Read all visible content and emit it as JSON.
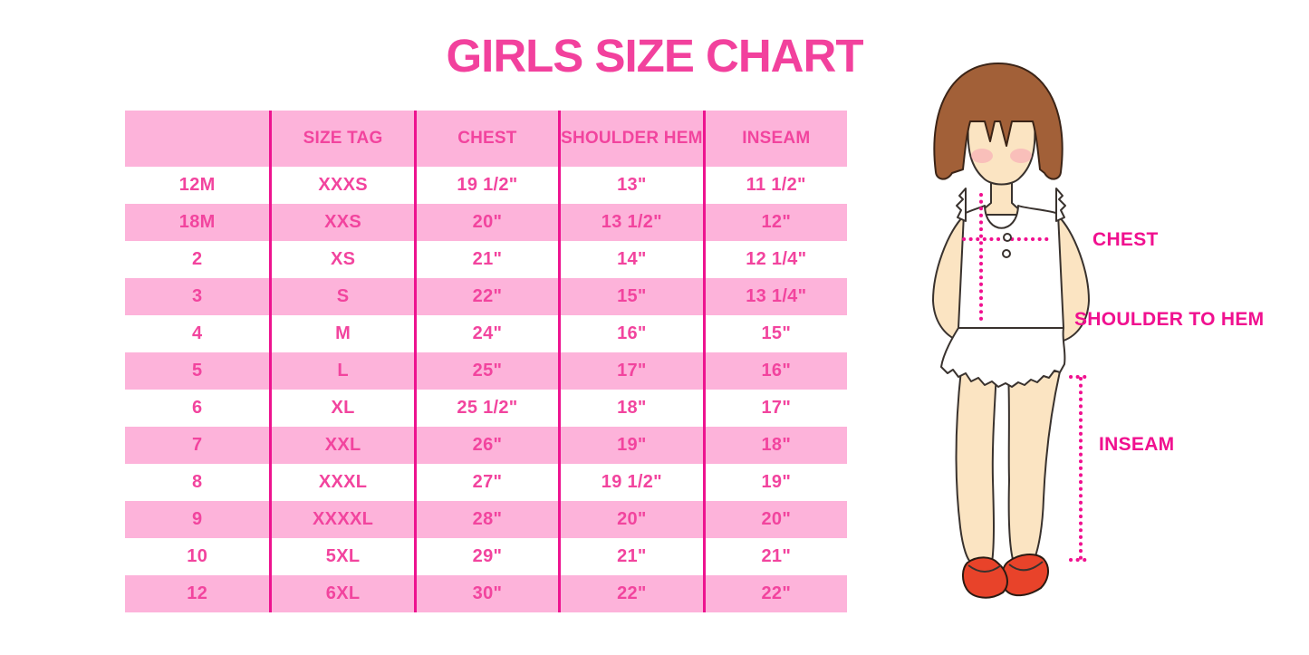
{
  "title": "GIRLS SIZE CHART",
  "colors": {
    "title_pink": "#F2419D",
    "row_pink": "#FDB3DA",
    "divider_magenta": "#ED138F",
    "cell_text_pink": "#F2449E",
    "label_magenta": "#F0108F",
    "hair_brown": "#A26038",
    "skin": "#FBE4C2",
    "shoe_red": "#E8432A"
  },
  "figure": {
    "chest_label": "CHEST",
    "shoulder_to_hem_label": "SHOULDER TO HEM",
    "inseam_label": "INSEAM"
  },
  "chart_data": {
    "type": "table",
    "title": "GIRLS SIZE CHART",
    "columns": [
      "",
      "SIZE TAG",
      "CHEST",
      "SHOULDER HEM",
      "INSEAM"
    ],
    "rows": [
      [
        "12M",
        "XXXS",
        "19 1/2\"",
        "13\"",
        "11 1/2\""
      ],
      [
        "18M",
        "XXS",
        "20\"",
        "13 1/2\"",
        "12\""
      ],
      [
        "2",
        "XS",
        "21\"",
        "14\"",
        "12 1/4\""
      ],
      [
        "3",
        "S",
        "22\"",
        "15\"",
        "13 1/4\""
      ],
      [
        "4",
        "M",
        "24\"",
        "16\"",
        "15\""
      ],
      [
        "5",
        "L",
        "25\"",
        "17\"",
        "16\""
      ],
      [
        "6",
        "XL",
        "25 1/2\"",
        "18\"",
        "17\""
      ],
      [
        "7",
        "XXL",
        "26\"",
        "19\"",
        "18\""
      ],
      [
        "8",
        "XXXL",
        "27\"",
        "19 1/2\"",
        "19\""
      ],
      [
        "9",
        "XXXXL",
        "28\"",
        "20\"",
        "20\""
      ],
      [
        "10",
        "5XL",
        "29\"",
        "21\"",
        "21\""
      ],
      [
        "12",
        "6XL",
        "30\"",
        "22\"",
        "22\""
      ]
    ],
    "layout": {
      "row_striping": "white/pink alternating, header pink",
      "column_dividers": "magenta vertical lines between columns",
      "units": "inches"
    }
  }
}
